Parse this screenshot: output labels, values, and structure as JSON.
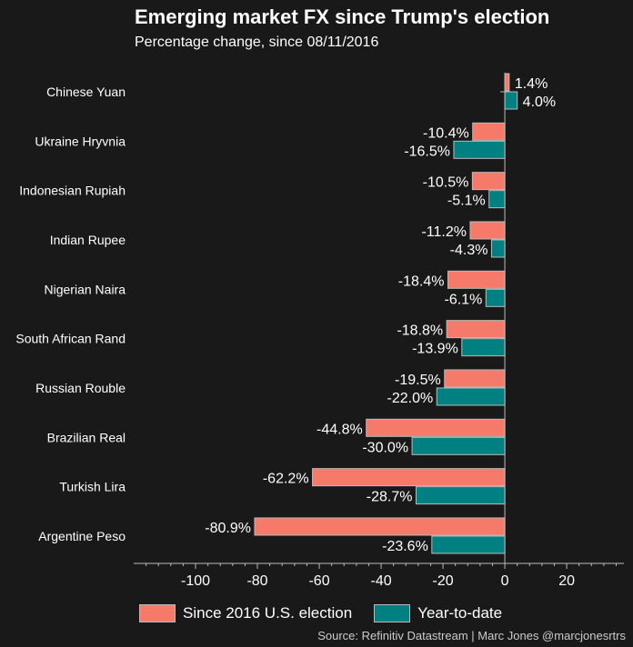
{
  "title": "Emerging market FX since Trump's election",
  "subtitle": "Percentage change, since 08/11/2016",
  "source": "Source: Refinitiv Datastream | Marc Jones @marcjonesrtrs",
  "colors": {
    "since_election": "#f67a6a",
    "ytd": "#008080",
    "background": "#191919"
  },
  "chart_data": {
    "type": "bar",
    "orientation": "horizontal",
    "title": "Emerging market FX since Trump's election",
    "subtitle": "Percentage change, since 08/11/2016",
    "categories": [
      "Chinese Yuan",
      "Ukraine Hryvnia",
      "Indonesian Rupiah",
      "Indian Rupee",
      "Nigerian Naira",
      "South African Rand",
      "Russian Rouble",
      "Brazilian Real",
      "Turkish Lira",
      "Argentine Peso"
    ],
    "series": [
      {
        "name": "Since 2016 U.S. election",
        "values": [
          1.4,
          -10.4,
          -10.5,
          -11.2,
          -18.4,
          -18.8,
          -19.5,
          -44.8,
          -62.2,
          -80.9
        ],
        "labels": [
          "1.4%",
          "-10.4%",
          "-10.5%",
          "-11.2%",
          "-18.4%",
          "-18.8%",
          "-19.5%",
          "-44.8%",
          "-62.2%",
          "-80.9%"
        ]
      },
      {
        "name": "Year-to-date",
        "values": [
          4.0,
          -16.5,
          -5.1,
          -4.3,
          -6.1,
          -13.9,
          -22.0,
          -30.0,
          -28.7,
          -23.6
        ],
        "labels": [
          "4.0%",
          "-16.5%",
          "-5.1%",
          "-4.3%",
          "-6.1%",
          "-13.9%",
          "-22.0%",
          "-30.0%",
          "-28.7%",
          "-23.6%"
        ]
      }
    ],
    "xticks": [
      -100,
      -80,
      -60,
      -40,
      -20,
      0,
      20
    ],
    "xtick_labels": [
      "-100",
      "-80",
      "-60",
      "-40",
      "-20",
      "0",
      "20"
    ],
    "xlim": [
      -120,
      38.5
    ],
    "xlabel": "",
    "ylabel": "",
    "grid": false,
    "legend": "bottom"
  }
}
